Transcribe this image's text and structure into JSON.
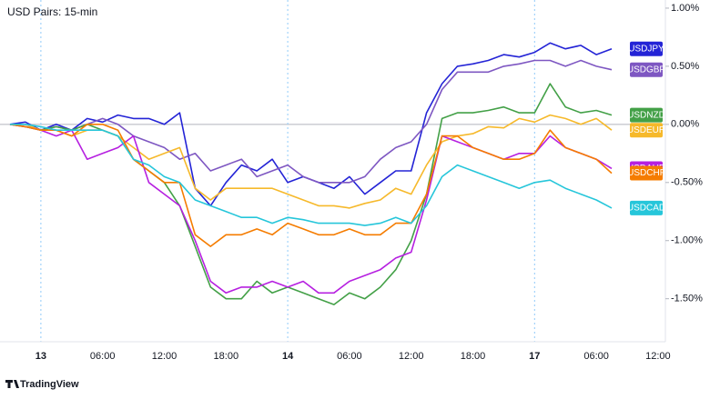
{
  "chart_data": {
    "type": "line",
    "title": "USD Pairs: 15-min",
    "categories": [
      null,
      null,
      "13",
      null,
      null,
      null,
      "06:00",
      null,
      null,
      null,
      "12:00",
      null,
      null,
      null,
      "18:00",
      null,
      null,
      null,
      "14",
      null,
      null,
      null,
      "06:00",
      null,
      null,
      null,
      "12:00",
      null,
      null,
      null,
      "18:00",
      null,
      null,
      null,
      "17",
      null,
      null,
      null,
      "06:00",
      null,
      null,
      null,
      "12:00",
      null
    ],
    "ylim": [
      -1.87,
      1.07
    ],
    "yticks": [
      {
        "value": 1,
        "label": "1.00%"
      },
      {
        "value": 0.5,
        "label": "0.50%"
      },
      {
        "value": 0,
        "label": "0.00%"
      },
      {
        "value": -0.5,
        "label": "-0.50%"
      },
      {
        "value": -1,
        "label": "-1.00%"
      },
      {
        "value": -1.5,
        "label": "-1.50%"
      }
    ],
    "series": [
      {
        "name": "USDJPY",
        "color": "#2424d6",
        "values": [
          0,
          0.02,
          -0.05,
          0,
          -0.05,
          0.05,
          0.02,
          0.08,
          0.05,
          0.05,
          0.0,
          0.1,
          -0.55,
          -0.7,
          -0.5,
          -0.35,
          -0.4,
          -0.3,
          -0.5,
          -0.45,
          -0.5,
          -0.55,
          -0.45,
          -0.6,
          -0.5,
          -0.4,
          -0.4,
          0.1,
          0.35,
          0.5,
          0.52,
          0.55,
          0.6,
          0.58,
          0.62,
          0.7,
          0.65,
          0.68,
          0.6,
          0.65,
          null,
          null,
          null,
          null
        ]
      },
      {
        "name": "USDGBP",
        "color": "#7e57c2",
        "values": [
          0,
          0,
          -0.05,
          -0.02,
          -0.05,
          0,
          0.05,
          0,
          -0.1,
          -0.15,
          -0.2,
          -0.3,
          -0.25,
          -0.4,
          -0.35,
          -0.3,
          -0.45,
          -0.4,
          -0.35,
          -0.45,
          -0.5,
          -0.5,
          -0.5,
          -0.45,
          -0.3,
          -0.2,
          -0.15,
          0.0,
          0.3,
          0.45,
          0.45,
          0.45,
          0.5,
          0.52,
          0.55,
          0.55,
          0.5,
          0.55,
          0.5,
          0.47,
          null,
          null,
          null,
          null
        ]
      },
      {
        "name": "USDNZD",
        "color": "#43a047",
        "values": [
          0,
          -0.02,
          -0.05,
          -0.02,
          -0.05,
          0,
          -0.05,
          -0.1,
          -0.3,
          -0.4,
          -0.5,
          -0.7,
          -1.05,
          -1.4,
          -1.5,
          -1.5,
          -1.35,
          -1.45,
          -1.4,
          -1.45,
          -1.5,
          -1.55,
          -1.45,
          -1.5,
          -1.4,
          -1.25,
          -1.0,
          -0.6,
          0.05,
          0.1,
          0.1,
          0.12,
          0.15,
          0.1,
          0.1,
          0.35,
          0.15,
          0.1,
          0.12,
          0.08,
          null,
          null,
          null,
          null
        ]
      },
      {
        "name": "USDEUR",
        "color": "#f6b92b",
        "values": [
          0,
          0,
          -0.05,
          -0.05,
          -0.1,
          -0.05,
          -0.05,
          -0.1,
          -0.2,
          -0.3,
          -0.25,
          -0.2,
          -0.55,
          -0.65,
          -0.55,
          -0.55,
          -0.55,
          -0.55,
          -0.6,
          -0.65,
          -0.7,
          -0.7,
          -0.72,
          -0.68,
          -0.65,
          -0.55,
          -0.6,
          -0.35,
          -0.15,
          -0.1,
          -0.08,
          -0.02,
          -0.03,
          0.05,
          0.02,
          0.08,
          0.05,
          0.0,
          0.05,
          -0.05,
          null,
          null,
          null,
          null
        ]
      },
      {
        "name": "USDAUD",
        "color": "#b620e0",
        "values": [
          0,
          -0.02,
          -0.05,
          -0.1,
          -0.05,
          -0.3,
          -0.25,
          -0.2,
          -0.1,
          -0.5,
          -0.6,
          -0.7,
          -1.0,
          -1.35,
          -1.45,
          -1.4,
          -1.4,
          -1.35,
          -1.4,
          -1.35,
          -1.45,
          -1.45,
          -1.35,
          -1.3,
          -1.25,
          -1.15,
          -1.1,
          -0.65,
          -0.1,
          -0.15,
          -0.2,
          -0.25,
          -0.3,
          -0.25,
          -0.25,
          -0.1,
          -0.2,
          -0.25,
          -0.3,
          -0.38,
          null,
          null,
          null,
          null
        ]
      },
      {
        "name": "USDCHF",
        "color": "#f57c00",
        "values": [
          0,
          -0.02,
          -0.05,
          -0.05,
          -0.1,
          0,
          0,
          -0.05,
          -0.3,
          -0.4,
          -0.5,
          -0.5,
          -0.95,
          -1.05,
          -0.95,
          -0.95,
          -0.9,
          -0.95,
          -0.85,
          -0.9,
          -0.95,
          -0.95,
          -0.9,
          -0.95,
          -0.95,
          -0.85,
          -0.85,
          -0.6,
          -0.1,
          -0.1,
          -0.2,
          -0.25,
          -0.3,
          -0.3,
          -0.25,
          -0.05,
          -0.2,
          -0.25,
          -0.3,
          -0.42,
          null,
          null,
          null,
          null
        ]
      },
      {
        "name": "USDCAD",
        "color": "#26c6da",
        "values": [
          0,
          0,
          -0.02,
          -0.05,
          -0.05,
          -0.05,
          -0.05,
          -0.1,
          -0.3,
          -0.35,
          -0.45,
          -0.5,
          -0.65,
          -0.7,
          -0.75,
          -0.8,
          -0.8,
          -0.85,
          -0.8,
          -0.82,
          -0.85,
          -0.85,
          -0.85,
          -0.87,
          -0.85,
          -0.8,
          -0.85,
          -0.7,
          -0.45,
          -0.35,
          -0.4,
          -0.45,
          -0.5,
          -0.55,
          -0.5,
          -0.48,
          -0.55,
          -0.6,
          -0.65,
          -0.72,
          null,
          null,
          null,
          null
        ]
      }
    ],
    "grid": false
  },
  "brand": "TradingView"
}
